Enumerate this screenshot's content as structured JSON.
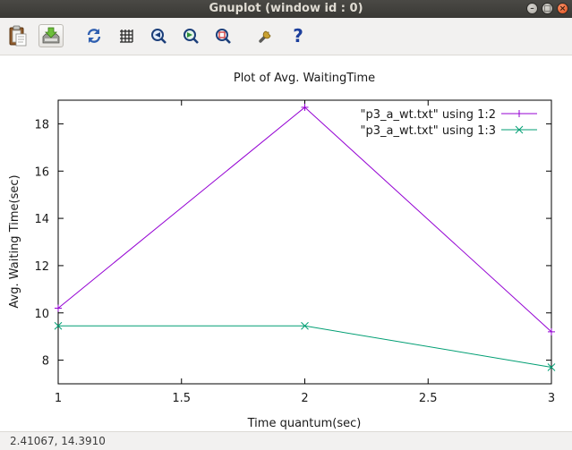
{
  "window": {
    "title": "Gnuplot (window id : 0)",
    "buttons": {
      "minimize": "–",
      "maximize": "□",
      "close": "×"
    }
  },
  "toolbar": {
    "items": [
      {
        "name": "copy-clipboard",
        "icon": "clipboard-icon"
      },
      {
        "name": "export",
        "icon": "export-icon"
      },
      {
        "name": "replot",
        "icon": "replot-icon"
      },
      {
        "name": "grid",
        "icon": "grid-icon"
      },
      {
        "name": "zoom-previous",
        "icon": "zoom-previous-icon"
      },
      {
        "name": "zoom-next",
        "icon": "zoom-next-icon"
      },
      {
        "name": "autoscale",
        "icon": "autoscale-icon"
      },
      {
        "name": "configuration",
        "icon": "wrench-icon"
      },
      {
        "name": "help",
        "icon": "help-icon"
      }
    ],
    "help_label": "?"
  },
  "status": {
    "coordinates": "2.41067,  14.3910"
  },
  "colors": {
    "series1": "#9400d3",
    "series2": "#009e73"
  },
  "chart_data": {
    "type": "line",
    "title": "Plot of Avg. WaitingTime",
    "xlabel": "Time quantum(sec)",
    "ylabel": "Avg. Waiting Time(sec)",
    "xlim": [
      1,
      3
    ],
    "ylim": [
      7,
      19
    ],
    "xticks": [
      {
        "value": 1,
        "label": "1"
      },
      {
        "value": 1.5,
        "label": "1.5"
      },
      {
        "value": 2,
        "label": "2"
      },
      {
        "value": 2.5,
        "label": "2.5"
      },
      {
        "value": 3,
        "label": "3"
      }
    ],
    "yticks": [
      {
        "value": 8,
        "label": "8"
      },
      {
        "value": 10,
        "label": "10"
      },
      {
        "value": 12,
        "label": "12"
      },
      {
        "value": 14,
        "label": "14"
      },
      {
        "value": 16,
        "label": "16"
      },
      {
        "value": 18,
        "label": "18"
      }
    ],
    "grid": false,
    "legend_position": "top-right",
    "series": [
      {
        "name": "\"p3_a_wt.txt\" using 1:2",
        "color": "#9400d3",
        "marker": "plus",
        "x": [
          1,
          2,
          3
        ],
        "y": [
          10.2,
          18.7,
          9.2
        ]
      },
      {
        "name": "\"p3_a_wt.txt\" using 1:3",
        "color": "#009e73",
        "marker": "cross",
        "x": [
          1,
          2,
          3
        ],
        "y": [
          9.45,
          9.45,
          7.7
        ]
      }
    ]
  }
}
